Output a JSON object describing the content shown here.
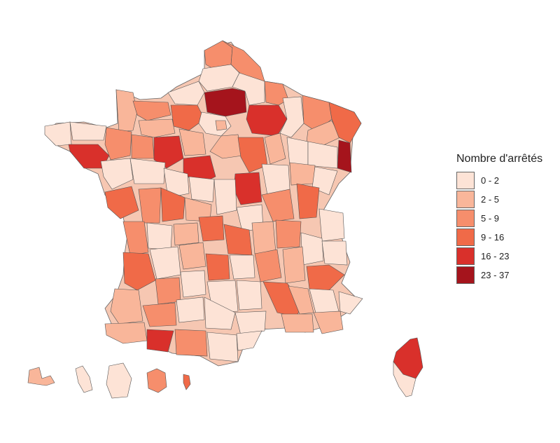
{
  "legend": {
    "title": "Nombre d'arrêtés",
    "classes": [
      {
        "label": "0 - 2",
        "color": "#fde3d6"
      },
      {
        "label": "2 - 5",
        "color": "#f9b69a"
      },
      {
        "label": "5 - 9",
        "color": "#f68e6c"
      },
      {
        "label": "9 - 16",
        "color": "#f06a48"
      },
      {
        "label": "16 - 23",
        "color": "#d9302b"
      },
      {
        "label": "23 - 37",
        "color": "#a5141c"
      }
    ]
  }
}
